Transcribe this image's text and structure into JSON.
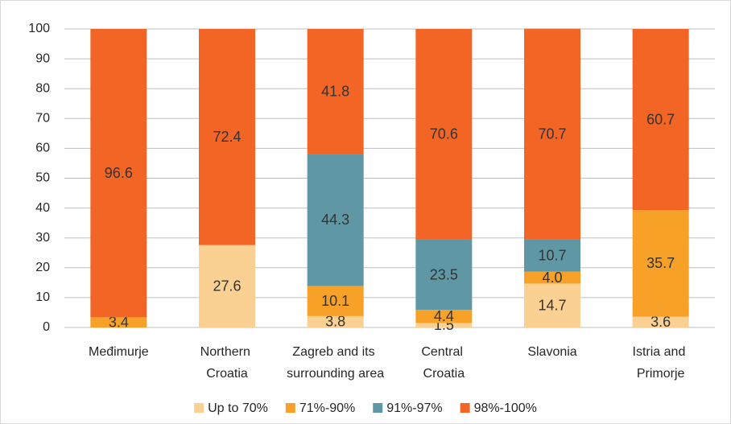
{
  "chart_data": {
    "type": "stacked_bar",
    "categories": [
      "Međimurje",
      "Northern Croatia",
      "Zagreb and its surrounding area",
      "Central Croatia",
      "Slavonia",
      "Istria and Primorje"
    ],
    "series": [
      {
        "name": "Up to 70%",
        "color": "#fad192",
        "values": [
          null,
          27.6,
          3.8,
          1.5,
          14.7,
          3.6
        ]
      },
      {
        "name": "71%-90%",
        "color": "#f7a128",
        "values": [
          3.4,
          null,
          10.1,
          4.4,
          4,
          35.7
        ],
        "value_labels": [
          "3.4",
          null,
          "10.1",
          "4.4",
          "4.0",
          "35.7"
        ]
      },
      {
        "name": "91%-97%",
        "color": "#5f98a4",
        "values": [
          null,
          null,
          44.3,
          23.5,
          10.7,
          null
        ]
      },
      {
        "name": "98%-100%",
        "color": "#f26524",
        "values": [
          96.6,
          72.4,
          41.8,
          70.6,
          70.7,
          60.7
        ]
      }
    ],
    "ylim": [
      0,
      100
    ],
    "yticks": [
      0,
      10,
      20,
      30,
      40,
      50,
      60,
      70,
      80,
      90,
      100
    ],
    "grid": true,
    "legend": "bottom"
  }
}
